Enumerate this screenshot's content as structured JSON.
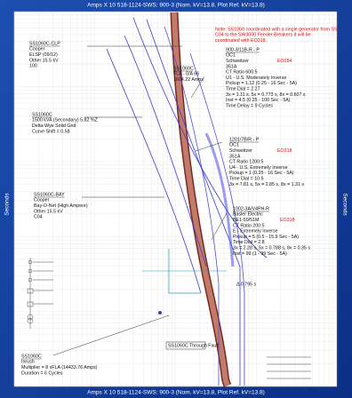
{
  "header": {
    "title": "Amps X 10  518-1124-SWS: 900-3 (Nom. kV=13.8, Plot Ref. kV=13.8)"
  },
  "footer": {
    "title": "Amps X 10  518-1124-SWS: 900-3 (Nom. kV=13.8, Plot Ref. kV=13.8)"
  },
  "axes": {
    "left": "Seconds",
    "right": "Seconds"
  },
  "note": {
    "lines": [
      "Note: SS1060 coordinated with a single generator from SS",
      "C04 to the SW3000 Feeder Breakers it will be",
      "coordinated with EO318."
    ]
  },
  "labels": [
    {
      "lines": [
        "900-3/11B-R - P",
        "OC1",
        "Schweitzer",
        "351A",
        "CT Ratio 600:5",
        "U1 - U.S. Moderately Inverse",
        "Pickup = 1.12 (0.25 - 16 Sec - 5A)",
        "Time Dial = 2.27",
        "3x = 1.11 s, 5x = 0.773 s, 8x = 0.607 s",
        "Inst = 4.5 (0.25 - 100 Sec - 5A)",
        "Time Delay = 9 Cycles"
      ],
      "tag": "EO284"
    },
    {
      "lines": [
        "SS1060C-CLP",
        "Cooper",
        "ELSP (09/12)",
        "Other 15.5 kV",
        "100"
      ]
    },
    {
      "lines": [
        "SS1060C",
        "FLA - 0/A 66",
        "1604.22 Amps"
      ]
    },
    {
      "lines": [
        "SS1060C",
        "1500 kVA (Secondary) 5.82 %Z",
        "Delta-Wye Solid Gnd",
        "Curve Shift = 0.58"
      ]
    },
    {
      "lines": [
        "1201/7B/R - P",
        "OC1",
        "Schweitzer",
        "351A",
        "CT Ratio 1200:5",
        "U4 - U.S. Extremely Inverse",
        "Pickup = 1 (0.25 - 16 Sec - 5A)",
        "Time Dial = 10.5",
        "3x = 7.81 s, 5x = 2.85 s, 8x = 1.31 s"
      ],
      "tag": "EO318"
    },
    {
      "lines": [
        "SS1060C-BAY",
        "Cooper",
        "Bay-O-Net (High Ampere)",
        "Other 15.5 kV",
        "C04"
      ]
    },
    {
      "lines": [
        "1002-3A/V4PH-R",
        "Basler Electric",
        "BE1-50/51M",
        "CT Ratio 200:5",
        "E - Extremely Inverse",
        "Pickup = 5 (0.5 - 15.9 Sec - 5A)",
        "Time Dial = 2.8",
        "3x = 2.28 s, 5x = 0.788 s, 8x = 0.35 s",
        "Inst = 99 (1 - 99 Sec - 5A)"
      ],
      "tag": "EO318"
    },
    {
      "lines": [
        "Δ 0.795 s"
      ]
    },
    {
      "lines": [
        "SS1060C",
        "Inrush",
        "Multiplier = 8 xFLA (14433.76 Amps)",
        "Duration = 6 Cycles"
      ]
    },
    {
      "lines": [
        "SS1060C Through Fault"
      ]
    }
  ]
}
